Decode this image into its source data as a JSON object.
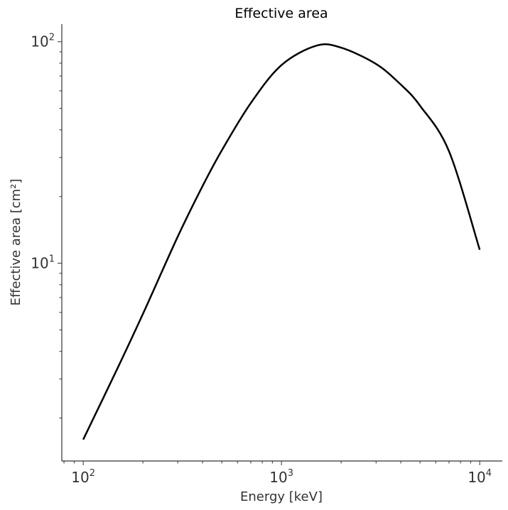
{
  "chart_data": {
    "type": "line",
    "title": "Effective area",
    "xlabel": "Energy [keV]",
    "ylabel": "Effective area [cm²]",
    "xscale": "log",
    "yscale": "log",
    "xlim": [
      78,
      13000
    ],
    "ylim": [
      1.28,
      120
    ],
    "grid": false,
    "legend": "none",
    "x_tick_labels": [
      {
        "value": 100,
        "base": "10",
        "exp": "2"
      },
      {
        "value": 1000,
        "base": "10",
        "exp": "3"
      },
      {
        "value": 10000,
        "base": "10",
        "exp": "4"
      }
    ],
    "y_tick_labels": [
      {
        "value": 10,
        "base": "10",
        "exp": "1"
      },
      {
        "value": 100,
        "base": "10",
        "exp": "2"
      }
    ],
    "series": [
      {
        "color": "#000000",
        "x": [
          100,
          150,
          200,
          300,
          400,
          500,
          700,
          1000,
          1500,
          2000,
          3000,
          4000,
          5000,
          7000,
          10000
        ],
        "y": [
          1.6,
          3.4,
          5.9,
          13.2,
          22.3,
          32.3,
          52.8,
          78.4,
          95.9,
          94.0,
          79.3,
          64.0,
          51.4,
          32.0,
          11.5
        ]
      }
    ],
    "series_line_color": "#000000",
    "axis_color": "#333333"
  }
}
